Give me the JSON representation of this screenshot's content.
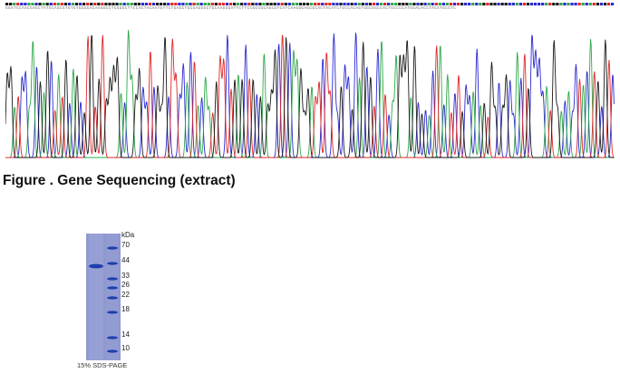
{
  "sequence": "GGATCCAACGAGCTATGCAGCGTGTGTGGGGACAAGGCCTCGGGCTTCCACTACAATGTTCTGAGCTGCGAGGGCTGCAAGGGATTCTTCCGCCGCAGCGTCATCAAGGGAGCGCACTACATCTGCCACAGTGGCGGCCACTGCCCCATGGACACCTACATGCGTC",
  "trace_colors": {
    "A": "#2ea84a",
    "C": "#2a2ad0",
    "G": "#1a1a1a",
    "T": "#e02828"
  },
  "caption": "Figure . Gene Sequencing (extract)",
  "gel": {
    "unit": "kDa",
    "markers": [
      "70",
      "44",
      "33",
      "26",
      "22",
      "18",
      "14",
      "10"
    ],
    "caption": "15% SDS-PAGE",
    "lane_color": "#8f98cf",
    "band_color": "#1e3fae"
  }
}
